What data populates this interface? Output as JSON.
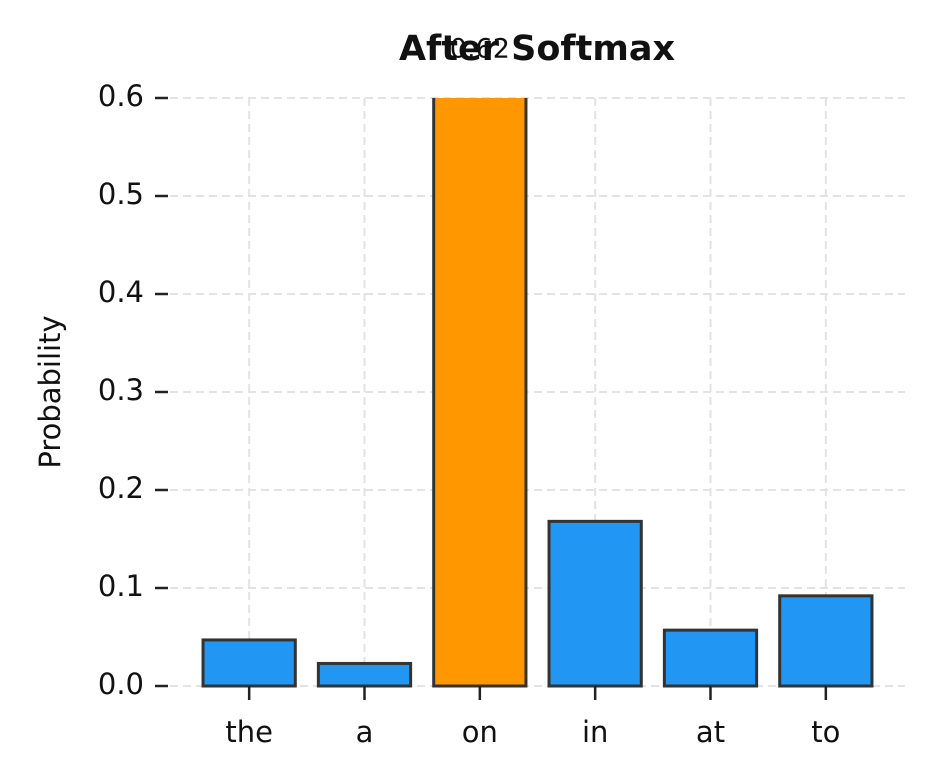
{
  "chart_data": {
    "type": "bar",
    "title": "After Softmax",
    "ylabel": "Probability",
    "categories": [
      "the",
      "a",
      "on",
      "in",
      "at",
      "to"
    ],
    "values": [
      0.047,
      0.023,
      0.62,
      0.168,
      0.057,
      0.092
    ],
    "value_labels": [
      null,
      null,
      "0.62",
      null,
      null,
      null
    ],
    "colors": [
      "#2196f3",
      "#2196f3",
      "#ff9800",
      "#2196f3",
      "#2196f3",
      "#2196f3"
    ],
    "edgecolor": "#333333",
    "ylim": [
      0,
      0.6
    ],
    "yticks": [
      {
        "value": 0,
        "label": "0.0"
      },
      0.1,
      0.2,
      0.3,
      0.4,
      0.5,
      0.6
    ],
    "grid": true
  }
}
